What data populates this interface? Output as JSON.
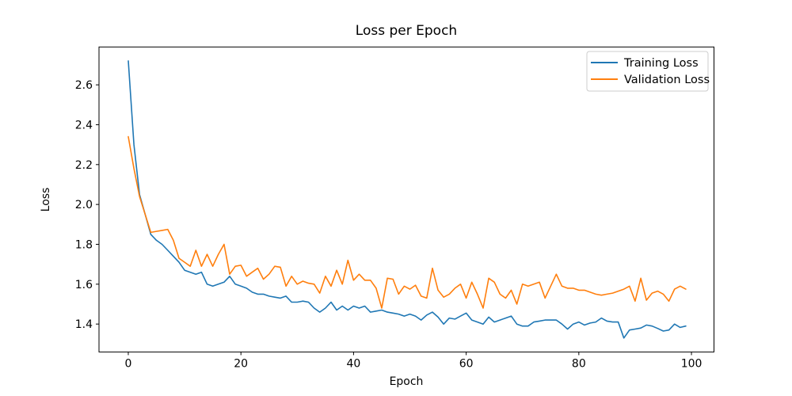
{
  "chart_data": {
    "type": "line",
    "title": "Loss per Epoch",
    "xlabel": "Epoch",
    "ylabel": "Loss",
    "xlim": [
      -5.2,
      104.0
    ],
    "ylim": [
      1.26,
      2.79
    ],
    "xticks": [
      "0",
      "20",
      "40",
      "60",
      "80",
      "100"
    ],
    "yticks": [
      "1.4",
      "1.6",
      "1.8",
      "2.0",
      "2.2",
      "2.4",
      "2.6"
    ],
    "grid": false,
    "legend_position": "upper right",
    "background_color": "#ffffff",
    "spine_color": "#000000",
    "x": [
      0,
      1,
      2,
      3,
      4,
      5,
      6,
      7,
      8,
      9,
      10,
      11,
      12,
      13,
      14,
      15,
      16,
      17,
      18,
      19,
      20,
      21,
      22,
      23,
      24,
      25,
      26,
      27,
      28,
      29,
      30,
      31,
      32,
      33,
      34,
      35,
      36,
      37,
      38,
      39,
      40,
      41,
      42,
      43,
      44,
      45,
      46,
      47,
      48,
      49,
      50,
      51,
      52,
      53,
      54,
      55,
      56,
      57,
      58,
      59,
      60,
      61,
      62,
      63,
      64,
      65,
      66,
      67,
      68,
      69,
      70,
      71,
      72,
      73,
      74,
      75,
      76,
      77,
      78,
      79,
      80,
      81,
      82,
      83,
      84,
      85,
      86,
      87,
      88,
      89,
      90,
      91,
      92,
      93,
      94,
      95,
      96,
      97,
      98,
      99
    ],
    "series": [
      {
        "name": "Training Loss",
        "color": "#1f77b4",
        "values": [
          2.72,
          2.3,
          2.05,
          1.95,
          1.85,
          1.82,
          1.8,
          1.77,
          1.74,
          1.71,
          1.67,
          1.66,
          1.65,
          1.66,
          1.6,
          1.59,
          1.6,
          1.61,
          1.64,
          1.6,
          1.59,
          1.58,
          1.56,
          1.55,
          1.55,
          1.54,
          1.535,
          1.53,
          1.54,
          1.51,
          1.51,
          1.515,
          1.51,
          1.48,
          1.46,
          1.48,
          1.51,
          1.47,
          1.49,
          1.47,
          1.49,
          1.48,
          1.49,
          1.46,
          1.465,
          1.47,
          1.46,
          1.455,
          1.45,
          1.44,
          1.45,
          1.44,
          1.42,
          1.445,
          1.46,
          1.435,
          1.4,
          1.43,
          1.425,
          1.44,
          1.455,
          1.42,
          1.41,
          1.4,
          1.435,
          1.41,
          1.42,
          1.43,
          1.44,
          1.4,
          1.39,
          1.39,
          1.41,
          1.415,
          1.42,
          1.42,
          1.42,
          1.4,
          1.375,
          1.4,
          1.41,
          1.395,
          1.405,
          1.41,
          1.43,
          1.415,
          1.41,
          1.41,
          1.33,
          1.37,
          1.375,
          1.38,
          1.395,
          1.39,
          1.378,
          1.365,
          1.37,
          1.4,
          1.383,
          1.39
        ]
      },
      {
        "name": "Validation Loss",
        "color": "#ff7f0e",
        "values": [
          2.34,
          2.18,
          2.04,
          1.95,
          1.86,
          1.865,
          1.87,
          1.875,
          1.82,
          1.73,
          1.71,
          1.69,
          1.77,
          1.69,
          1.75,
          1.69,
          1.75,
          1.8,
          1.65,
          1.69,
          1.695,
          1.64,
          1.66,
          1.68,
          1.625,
          1.65,
          1.69,
          1.685,
          1.59,
          1.64,
          1.6,
          1.615,
          1.605,
          1.6,
          1.555,
          1.64,
          1.59,
          1.67,
          1.6,
          1.72,
          1.62,
          1.65,
          1.62,
          1.62,
          1.58,
          1.48,
          1.63,
          1.625,
          1.55,
          1.59,
          1.575,
          1.595,
          1.54,
          1.53,
          1.68,
          1.57,
          1.535,
          1.55,
          1.58,
          1.6,
          1.53,
          1.61,
          1.55,
          1.48,
          1.63,
          1.61,
          1.55,
          1.53,
          1.57,
          1.5,
          1.6,
          1.59,
          1.6,
          1.61,
          1.53,
          1.59,
          1.65,
          1.59,
          1.58,
          1.58,
          1.57,
          1.57,
          1.56,
          1.55,
          1.545,
          1.55,
          1.555,
          1.565,
          1.575,
          1.59,
          1.515,
          1.63,
          1.52,
          1.555,
          1.565,
          1.55,
          1.515,
          1.575,
          1.59,
          1.575
        ]
      }
    ]
  }
}
